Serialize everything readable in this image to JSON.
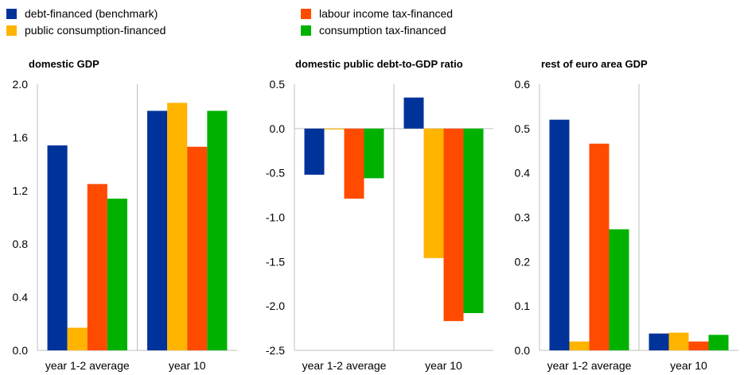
{
  "legend": [
    {
      "label": "debt-financed (benchmark)",
      "color": "#003399"
    },
    {
      "label": "labour income tax-financed",
      "color": "#FF4B00"
    },
    {
      "label": "public consumption-financed",
      "color": "#FFB400"
    },
    {
      "label": "consumption tax-financed",
      "color": "#00B100"
    }
  ],
  "chart_data": [
    {
      "type": "bar",
      "title": "domestic GDP",
      "categories": [
        "year 1-2 average",
        "year 10"
      ],
      "ylim": [
        0.0,
        2.0
      ],
      "yticks": [
        "0.0",
        "0.4",
        "0.8",
        "1.2",
        "1.6",
        "2.0"
      ],
      "grid": false,
      "series": [
        {
          "name": "debt-financed (benchmark)",
          "color": "#003399",
          "values": [
            1.54,
            1.8
          ]
        },
        {
          "name": "public consumption-financed",
          "color": "#FFB400",
          "values": [
            0.17,
            1.86
          ]
        },
        {
          "name": "labour income tax-financed",
          "color": "#FF4B00",
          "values": [
            1.25,
            1.53
          ]
        },
        {
          "name": "consumption tax-financed",
          "color": "#00B100",
          "values": [
            1.14,
            1.8
          ]
        }
      ]
    },
    {
      "type": "bar",
      "title": "domestic public debt-to-GDP ratio",
      "categories": [
        "year 1-2 average",
        "year 10"
      ],
      "ylim": [
        -2.5,
        0.5
      ],
      "yticks": [
        "-2.5",
        "-2.0",
        "-1.5",
        "-1.0",
        "-0.5",
        "0.0",
        "0.5"
      ],
      "grid": false,
      "series": [
        {
          "name": "debt-financed (benchmark)",
          "color": "#003399",
          "values": [
            -0.52,
            0.35
          ]
        },
        {
          "name": "public consumption-financed",
          "color": "#FFB400",
          "values": [
            -0.01,
            -1.46
          ]
        },
        {
          "name": "labour income tax-financed",
          "color": "#FF4B00",
          "values": [
            -0.79,
            -2.17
          ]
        },
        {
          "name": "consumption tax-financed",
          "color": "#00B100",
          "values": [
            -0.56,
            -2.08
          ]
        }
      ]
    },
    {
      "type": "bar",
      "title": "rest of euro area GDP",
      "categories": [
        "year 1-2 average",
        "year 10"
      ],
      "ylim": [
        0.0,
        0.6
      ],
      "yticks": [
        "0.0",
        "0.1",
        "0.2",
        "0.3",
        "0.4",
        "0.5",
        "0.6"
      ],
      "grid": false,
      "series": [
        {
          "name": "debt-financed (benchmark)",
          "color": "#003399",
          "values": [
            0.52,
            0.038
          ]
        },
        {
          "name": "public consumption-financed",
          "color": "#FFB400",
          "values": [
            0.02,
            0.04
          ]
        },
        {
          "name": "labour income tax-financed",
          "color": "#FF4B00",
          "values": [
            0.466,
            0.02
          ]
        },
        {
          "name": "consumption tax-financed",
          "color": "#00B100",
          "values": [
            0.273,
            0.035
          ]
        }
      ]
    }
  ]
}
